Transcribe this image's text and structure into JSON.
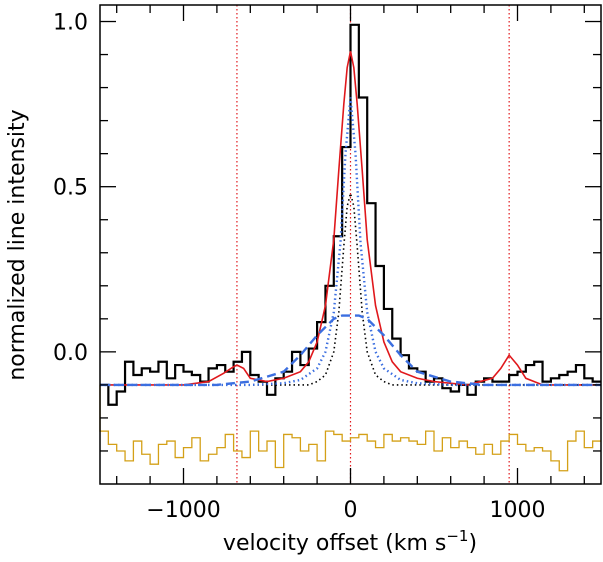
{
  "chart_data": {
    "type": "line",
    "title": "",
    "xlabel": "velocity offset (km s",
    "xlabel_superscript": "−1",
    "xlabel_suffix": ")",
    "ylabel": "normalized line intensity",
    "xlim": [
      -1500,
      1500
    ],
    "ylim": [
      -0.4,
      1.05
    ],
    "grid": false,
    "legend": "none",
    "x_ticks": [
      {
        "value": -1000,
        "label": "−1000"
      },
      {
        "value": 0,
        "label": "0"
      },
      {
        "value": 1000,
        "label": "1000"
      }
    ],
    "y_ticks": [
      {
        "value": 0.0,
        "label": "0.0"
      },
      {
        "value": 0.5,
        "label": "0.5"
      },
      {
        "value": 1.0,
        "label": "1.0"
      }
    ],
    "vertical_lines": [
      -680,
      0,
      950
    ],
    "baseline": -0.1,
    "series": [
      {
        "style": "histogram",
        "color": "#000000",
        "bin_width": 50,
        "x": [
          -1500,
          -1450,
          -1400,
          -1350,
          -1300,
          -1250,
          -1200,
          -1150,
          -1100,
          -1050,
          -1000,
          -950,
          -900,
          -850,
          -800,
          -750,
          -700,
          -650,
          -600,
          -550,
          -500,
          -450,
          -400,
          -350,
          -300,
          -250,
          -200,
          -150,
          -100,
          -50,
          0,
          50,
          100,
          150,
          200,
          250,
          300,
          350,
          400,
          450,
          500,
          550,
          600,
          650,
          700,
          750,
          800,
          850,
          900,
          950,
          1000,
          1050,
          1100,
          1150,
          1200,
          1250,
          1300,
          1350,
          1400,
          1450
        ],
        "values": [
          -0.1,
          -0.16,
          -0.12,
          -0.03,
          -0.07,
          -0.05,
          -0.06,
          -0.03,
          -0.08,
          -0.04,
          -0.06,
          -0.07,
          -0.09,
          -0.05,
          -0.04,
          -0.06,
          -0.03,
          0.0,
          -0.07,
          -0.09,
          -0.13,
          -0.08,
          -0.06,
          0.0,
          -0.04,
          0.01,
          0.09,
          0.2,
          0.35,
          0.62,
          0.99,
          0.77,
          0.45,
          0.26,
          0.13,
          0.04,
          -0.01,
          -0.05,
          -0.06,
          -0.09,
          -0.08,
          -0.11,
          -0.12,
          -0.1,
          -0.13,
          -0.09,
          -0.08,
          -0.09,
          -0.09,
          -0.07,
          -0.06,
          -0.04,
          -0.03,
          -0.09,
          -0.08,
          -0.07,
          -0.06,
          -0.04,
          -0.08,
          -0.09
        ]
      },
      {
        "style": "histogram",
        "color": "#d4a017",
        "bin_width": 50,
        "x": [
          -1500,
          -1450,
          -1400,
          -1350,
          -1300,
          -1250,
          -1200,
          -1150,
          -1100,
          -1050,
          -1000,
          -950,
          -900,
          -850,
          -800,
          -750,
          -700,
          -650,
          -600,
          -550,
          -500,
          -450,
          -400,
          -350,
          -300,
          -250,
          -200,
          -150,
          -100,
          -50,
          0,
          50,
          100,
          150,
          200,
          250,
          300,
          350,
          400,
          450,
          500,
          550,
          600,
          650,
          700,
          750,
          800,
          850,
          900,
          950,
          1000,
          1050,
          1100,
          1150,
          1200,
          1250,
          1300,
          1350,
          1400,
          1450
        ],
        "values": [
          -0.24,
          -0.28,
          -0.3,
          -0.33,
          -0.27,
          -0.31,
          -0.34,
          -0.28,
          -0.27,
          -0.32,
          -0.29,
          -0.26,
          -0.33,
          -0.31,
          -0.29,
          -0.25,
          -0.3,
          -0.32,
          -0.24,
          -0.3,
          -0.27,
          -0.35,
          -0.25,
          -0.26,
          -0.3,
          -0.28,
          -0.33,
          -0.24,
          -0.25,
          -0.27,
          -0.26,
          -0.25,
          -0.27,
          -0.29,
          -0.25,
          -0.27,
          -0.26,
          -0.27,
          -0.28,
          -0.24,
          -0.3,
          -0.26,
          -0.29,
          -0.27,
          -0.29,
          -0.31,
          -0.28,
          -0.31,
          -0.27,
          -0.25,
          -0.28,
          -0.3,
          -0.29,
          -0.3,
          -0.33,
          -0.36,
          -0.27,
          -0.24,
          -0.29,
          -0.27
        ]
      },
      {
        "style": "solid",
        "color": "#e0181c",
        "x": [
          -1500,
          -1300,
          -1000,
          -850,
          -760,
          -700,
          -680,
          -640,
          -600,
          -500,
          -400,
          -300,
          -250,
          -200,
          -150,
          -100,
          -70,
          -40,
          -20,
          0,
          20,
          40,
          70,
          100,
          150,
          200,
          250,
          300,
          400,
          500,
          700,
          850,
          900,
          950,
          1000,
          1050,
          1150,
          1300,
          1500
        ],
        "values": [
          -0.1,
          -0.1,
          -0.1,
          -0.09,
          -0.065,
          -0.045,
          -0.04,
          -0.05,
          -0.08,
          -0.09,
          -0.08,
          -0.06,
          -0.03,
          0.03,
          0.14,
          0.34,
          0.55,
          0.75,
          0.86,
          0.91,
          0.86,
          0.75,
          0.55,
          0.34,
          0.14,
          0.03,
          -0.03,
          -0.06,
          -0.08,
          -0.09,
          -0.1,
          -0.08,
          -0.05,
          -0.01,
          -0.04,
          -0.08,
          -0.1,
          -0.1,
          -0.1
        ]
      },
      {
        "style": "dotted",
        "color": "#000000",
        "x": [
          -1500,
          -250,
          -200,
          -150,
          -100,
          -70,
          -40,
          -20,
          0,
          20,
          40,
          70,
          100,
          150,
          200,
          250,
          1500
        ],
        "values": [
          -0.1,
          -0.1,
          -0.09,
          -0.07,
          0.0,
          0.12,
          0.32,
          0.44,
          0.48,
          0.44,
          0.32,
          0.12,
          0.0,
          -0.07,
          -0.09,
          -0.1,
          -0.1
        ]
      },
      {
        "style": "dotted",
        "color": "#3c6fe0",
        "x": [
          -1500,
          -600,
          -400,
          -300,
          -200,
          -150,
          -100,
          -60,
          -30,
          0,
          30,
          60,
          100,
          150,
          200,
          300,
          400,
          600,
          1500
        ],
        "values": [
          -0.1,
          -0.1,
          -0.095,
          -0.085,
          -0.05,
          0.0,
          0.12,
          0.33,
          0.6,
          0.77,
          0.6,
          0.33,
          0.12,
          0.0,
          -0.05,
          -0.085,
          -0.095,
          -0.1,
          -0.1
        ]
      },
      {
        "style": "dashed",
        "color": "#3c6fe0",
        "x": [
          -1500,
          -1000,
          -800,
          -600,
          -400,
          -300,
          -200,
          -100,
          -50,
          0,
          50,
          100,
          200,
          300,
          400,
          600,
          800,
          1000,
          1500
        ],
        "values": [
          -0.1,
          -0.1,
          -0.1,
          -0.09,
          -0.06,
          -0.01,
          0.05,
          0.1,
          0.11,
          0.11,
          0.11,
          0.1,
          0.05,
          -0.01,
          -0.06,
          -0.09,
          -0.1,
          -0.1,
          -0.1
        ]
      }
    ]
  }
}
